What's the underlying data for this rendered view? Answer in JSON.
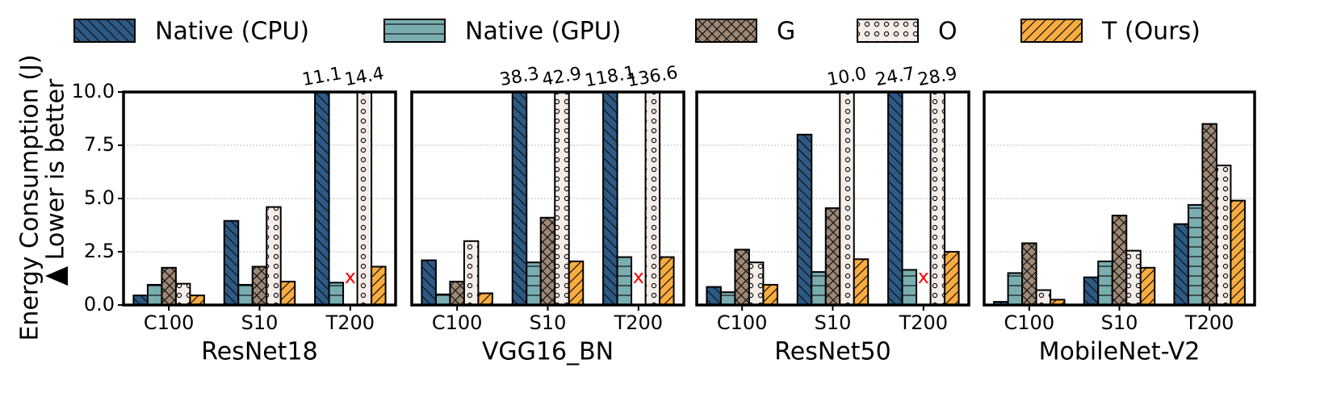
{
  "chart_data": [
    {
      "type": "bar",
      "title": "ResNet18",
      "ylabel": "Energy Consumption (J)",
      "ylabel_note": "Lower is better",
      "categories": [
        "C100",
        "S10",
        "T200"
      ],
      "ylim": [
        0,
        10
      ],
      "grid": true,
      "yticks": [
        {
          "value": 0,
          "label": "0.0"
        },
        2.5,
        {
          "value": 5,
          "label": "5.0"
        },
        7.5,
        {
          "value": 10,
          "label": "10.0"
        }
      ],
      "series": [
        {
          "name": "Native (CPU)",
          "color": "#2c5a85",
          "hatch": "\\",
          "values": [
            0.45,
            3.95,
            11.1
          ],
          "value_labels": [
            null,
            null,
            "11.1"
          ]
        },
        {
          "name": "Native (GPU)",
          "color": "#79adb0",
          "hatch": "-",
          "values": [
            0.95,
            0.95,
            1.05
          ]
        },
        {
          "name": "G",
          "color": "#9e8775",
          "hatch": "x",
          "values": [
            1.75,
            1.8,
            null
          ]
        },
        {
          "name": "O",
          "color": "#f5ede8",
          "hatch": "o",
          "values": [
            1.0,
            4.6,
            14.4
          ],
          "value_labels": [
            null,
            null,
            "14.4"
          ]
        },
        {
          "name": "T (Ours)",
          "color": "#f9ac40",
          "hatch": "/",
          "values": [
            0.45,
            1.1,
            1.8
          ]
        }
      ],
      "annotations": [
        {
          "text": "x",
          "series": 2,
          "category": 2,
          "color": "#ff0000"
        }
      ]
    },
    {
      "type": "bar",
      "title": "VGG16_BN",
      "categories": [
        "C100",
        "S10",
        "T200"
      ],
      "ylim": [
        0,
        10
      ],
      "series": [
        {
          "name": "Native (CPU)",
          "color": "#2c5a85",
          "hatch": "\\",
          "values": [
            2.1,
            38.3,
            118.1
          ],
          "value_labels": [
            null,
            "38.3",
            "118.1"
          ]
        },
        {
          "name": "Native (GPU)",
          "color": "#79adb0",
          "hatch": "-",
          "values": [
            0.5,
            2.0,
            2.25
          ]
        },
        {
          "name": "G",
          "color": "#9e8775",
          "hatch": "x",
          "values": [
            1.1,
            4.1,
            null
          ]
        },
        {
          "name": "O",
          "color": "#f5ede8",
          "hatch": "o",
          "values": [
            3.0,
            42.9,
            136.6
          ],
          "value_labels": [
            null,
            "42.9",
            "136.6"
          ]
        },
        {
          "name": "T (Ours)",
          "color": "#f9ac40",
          "hatch": "/",
          "values": [
            0.55,
            2.05,
            2.25
          ]
        }
      ],
      "annotations": [
        {
          "text": "x",
          "series": 2,
          "category": 2,
          "color": "#ff0000"
        }
      ]
    },
    {
      "type": "bar",
      "title": "ResNet50",
      "categories": [
        "C100",
        "S10",
        "T200"
      ],
      "ylim": [
        0,
        10
      ],
      "series": [
        {
          "name": "Native (CPU)",
          "color": "#2c5a85",
          "hatch": "\\",
          "values": [
            0.85,
            8.0,
            24.7
          ],
          "value_labels": [
            null,
            null,
            "24.7"
          ]
        },
        {
          "name": "Native (GPU)",
          "color": "#79adb0",
          "hatch": "-",
          "values": [
            0.6,
            1.55,
            1.65
          ]
        },
        {
          "name": "G",
          "color": "#9e8775",
          "hatch": "x",
          "values": [
            2.6,
            4.55,
            null
          ]
        },
        {
          "name": "O",
          "color": "#f5ede8",
          "hatch": "o",
          "values": [
            2.0,
            10.0,
            28.9
          ],
          "value_labels": [
            null,
            "10.0",
            "28.9"
          ]
        },
        {
          "name": "T (Ours)",
          "color": "#f9ac40",
          "hatch": "/",
          "values": [
            0.95,
            2.15,
            2.5
          ]
        }
      ],
      "annotations": [
        {
          "text": "x",
          "series": 2,
          "category": 2,
          "color": "#ff0000"
        }
      ]
    },
    {
      "type": "bar",
      "title": "MobileNet-V2",
      "categories": [
        "C100",
        "S10",
        "T200"
      ],
      "ylim": [
        0,
        10
      ],
      "series": [
        {
          "name": "Native (CPU)",
          "color": "#2c5a85",
          "hatch": "\\",
          "values": [
            0.15,
            1.3,
            3.8
          ]
        },
        {
          "name": "Native (GPU)",
          "color": "#79adb0",
          "hatch": "-",
          "values": [
            1.5,
            2.05,
            4.7
          ]
        },
        {
          "name": "G",
          "color": "#9e8775",
          "hatch": "x",
          "values": [
            2.9,
            4.2,
            8.5
          ]
        },
        {
          "name": "O",
          "color": "#f5ede8",
          "hatch": "o",
          "values": [
            0.7,
            2.55,
            6.55
          ]
        },
        {
          "name": "T (Ours)",
          "color": "#f9ac40",
          "hatch": "/",
          "values": [
            0.25,
            1.75,
            4.9
          ]
        }
      ]
    }
  ]
}
